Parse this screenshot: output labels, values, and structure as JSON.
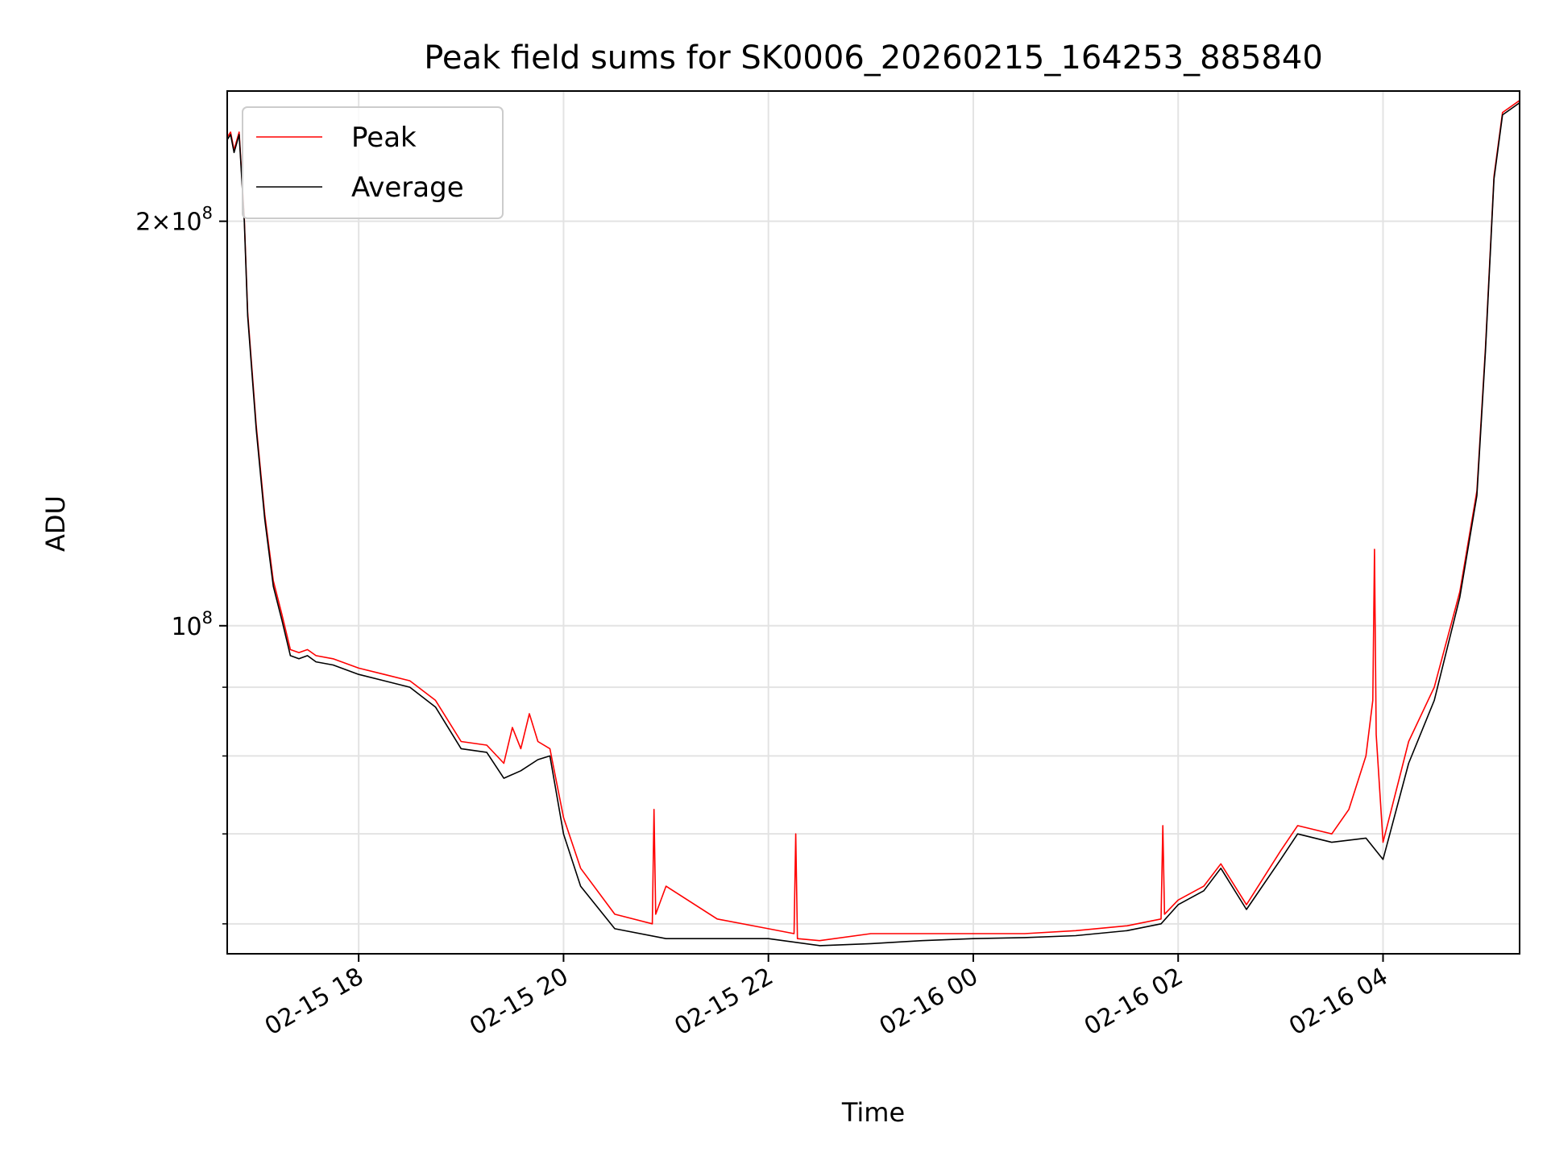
{
  "chart_data": {
    "type": "line",
    "title": "Peak field sums for SK0006_20260215_164253_885840",
    "xlabel": "Time",
    "ylabel": "ADU",
    "yscale": "log",
    "xlim": [
      "2026-02-15 16:43",
      "2026-02-16 05:20"
    ],
    "ylim": [
      57000000,
      250000000
    ],
    "x_ticks": [
      {
        "value": "2026-02-15 18:00",
        "label": "02-15 18"
      },
      {
        "value": "2026-02-15 20:00",
        "label": "02-15 20"
      },
      {
        "value": "2026-02-15 22:00",
        "label": "02-15 22"
      },
      {
        "value": "2026-02-16 00:00",
        "label": "02-16 00"
      },
      {
        "value": "2026-02-16 02:00",
        "label": "02-16 02"
      },
      {
        "value": "2026-02-16 04:00",
        "label": "02-16 04"
      }
    ],
    "y_ticks": [
      {
        "value": 100000000,
        "label": "10^8",
        "major": true
      },
      {
        "value": 200000000,
        "label": "2×10^8",
        "major": true
      },
      {
        "value": 60000000,
        "major": false
      },
      {
        "value": 70000000,
        "major": false
      },
      {
        "value": 80000000,
        "major": false
      },
      {
        "value": 90000000,
        "major": false
      }
    ],
    "grid": true,
    "legend_position": "top-left",
    "series": [
      {
        "name": "Average",
        "color": "#000000",
        "x": [
          "2026-02-15 16:43",
          "2026-02-15 16:45",
          "2026-02-15 16:47",
          "2026-02-15 16:50",
          "2026-02-15 16:53",
          "2026-02-15 16:55",
          "2026-02-15 17:00",
          "2026-02-15 17:05",
          "2026-02-15 17:10",
          "2026-02-15 17:15",
          "2026-02-15 17:20",
          "2026-02-15 17:25",
          "2026-02-15 17:30",
          "2026-02-15 17:35",
          "2026-02-15 17:45",
          "2026-02-15 18:00",
          "2026-02-15 18:15",
          "2026-02-15 18:30",
          "2026-02-15 18:45",
          "2026-02-15 19:00",
          "2026-02-15 19:15",
          "2026-02-15 19:25",
          "2026-02-15 19:35",
          "2026-02-15 19:45",
          "2026-02-15 19:52",
          "2026-02-15 20:00",
          "2026-02-15 20:10",
          "2026-02-15 20:30",
          "2026-02-15 21:00",
          "2026-02-15 21:30",
          "2026-02-15 22:00",
          "2026-02-15 22:30",
          "2026-02-15 23:00",
          "2026-02-15 23:30",
          "2026-02-16 00:00",
          "2026-02-16 00:30",
          "2026-02-16 01:00",
          "2026-02-16 01:30",
          "2026-02-16 01:50",
          "2026-02-16 02:00",
          "2026-02-16 02:15",
          "2026-02-16 02:25",
          "2026-02-16 02:40",
          "2026-02-16 03:00",
          "2026-02-16 03:10",
          "2026-02-16 03:30",
          "2026-02-16 03:50",
          "2026-02-16 04:00",
          "2026-02-16 04:15",
          "2026-02-16 04:30",
          "2026-02-16 04:45",
          "2026-02-16 04:55",
          "2026-02-16 05:00",
          "2026-02-16 05:05",
          "2026-02-16 05:10",
          "2026-02-16 05:20"
        ],
        "y": [
          230000000,
          232000000,
          225000000,
          232000000,
          200000000,
          170000000,
          140000000,
          120000000,
          107000000,
          101000000,
          95000000,
          94500000,
          95000000,
          94000000,
          93500000,
          92000000,
          91000000,
          90000000,
          87000000,
          81000000,
          80500000,
          77000000,
          78000000,
          79500000,
          80000000,
          70000000,
          64000000,
          59500000,
          58500000,
          58500000,
          58500000,
          57800000,
          58000000,
          58300000,
          58500000,
          58600000,
          58800000,
          59300000,
          60000000,
          62000000,
          63500000,
          66000000,
          61500000,
          67000000,
          70000000,
          69000000,
          69500000,
          67000000,
          79000000,
          88000000,
          105000000,
          125000000,
          160000000,
          215000000,
          240000000,
          245000000
        ]
      },
      {
        "name": "Peak",
        "color": "#ff0000",
        "x": [
          "2026-02-15 16:43",
          "2026-02-15 16:45",
          "2026-02-15 16:47",
          "2026-02-15 16:50",
          "2026-02-15 16:53",
          "2026-02-15 16:55",
          "2026-02-15 17:00",
          "2026-02-15 17:05",
          "2026-02-15 17:10",
          "2026-02-15 17:15",
          "2026-02-15 17:20",
          "2026-02-15 17:25",
          "2026-02-15 17:30",
          "2026-02-15 17:35",
          "2026-02-15 17:45",
          "2026-02-15 18:00",
          "2026-02-15 18:15",
          "2026-02-15 18:30",
          "2026-02-15 18:45",
          "2026-02-15 19:00",
          "2026-02-15 19:15",
          "2026-02-15 19:25",
          "2026-02-15 19:30",
          "2026-02-15 19:35",
          "2026-02-15 19:40",
          "2026-02-15 19:45",
          "2026-02-15 19:52",
          "2026-02-15 20:00",
          "2026-02-15 20:10",
          "2026-02-15 20:30",
          "2026-02-15 20:52",
          "2026-02-15 20:53",
          "2026-02-15 20:54",
          "2026-02-15 21:00",
          "2026-02-15 21:30",
          "2026-02-15 22:00",
          "2026-02-15 22:15",
          "2026-02-15 22:16",
          "2026-02-15 22:17",
          "2026-02-15 22:30",
          "2026-02-15 23:00",
          "2026-02-15 23:30",
          "2026-02-16 00:00",
          "2026-02-16 00:30",
          "2026-02-16 01:00",
          "2026-02-16 01:30",
          "2026-02-16 01:50",
          "2026-02-16 01:51",
          "2026-02-16 01:52",
          "2026-02-16 02:00",
          "2026-02-16 02:15",
          "2026-02-16 02:25",
          "2026-02-16 02:40",
          "2026-02-16 03:00",
          "2026-02-16 03:10",
          "2026-02-16 03:30",
          "2026-02-16 03:40",
          "2026-02-16 03:50",
          "2026-02-16 03:54",
          "2026-02-16 03:55",
          "2026-02-16 03:56",
          "2026-02-16 04:00",
          "2026-02-16 04:15",
          "2026-02-16 04:30",
          "2026-02-16 04:45",
          "2026-02-16 04:55",
          "2026-02-16 05:00",
          "2026-02-16 05:05",
          "2026-02-16 05:10",
          "2026-02-16 05:20"
        ],
        "y": [
          231000000,
          233000000,
          226000000,
          233000000,
          201000000,
          171000000,
          141000000,
          121000000,
          108000000,
          102000000,
          96000000,
          95500000,
          96000000,
          95000000,
          94500000,
          93000000,
          92000000,
          91000000,
          88000000,
          82000000,
          81500000,
          79000000,
          84000000,
          81000000,
          86000000,
          82000000,
          81000000,
          72000000,
          66000000,
          61000000,
          60000000,
          73000000,
          61000000,
          64000000,
          60500000,
          59500000,
          59000000,
          70000000,
          58500000,
          58300000,
          59000000,
          59000000,
          59000000,
          59000000,
          59300000,
          59800000,
          60500000,
          71000000,
          61000000,
          62500000,
          64000000,
          66500000,
          62000000,
          68000000,
          71000000,
          70000000,
          73000000,
          80000000,
          88000000,
          114000000,
          83000000,
          69000000,
          82000000,
          90000000,
          106000000,
          126000000,
          161000000,
          216000000,
          241000000,
          246000000
        ]
      }
    ]
  }
}
